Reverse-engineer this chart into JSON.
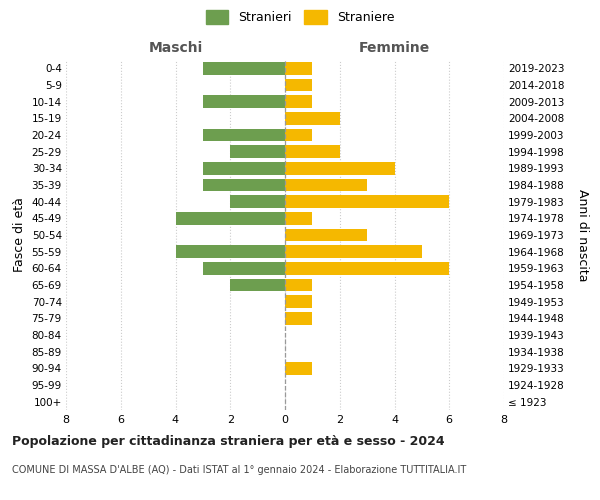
{
  "age_groups": [
    "100+",
    "95-99",
    "90-94",
    "85-89",
    "80-84",
    "75-79",
    "70-74",
    "65-69",
    "60-64",
    "55-59",
    "50-54",
    "45-49",
    "40-44",
    "35-39",
    "30-34",
    "25-29",
    "20-24",
    "15-19",
    "10-14",
    "5-9",
    "0-4"
  ],
  "birth_years": [
    "≤ 1923",
    "1924-1928",
    "1929-1933",
    "1934-1938",
    "1939-1943",
    "1944-1948",
    "1949-1953",
    "1954-1958",
    "1959-1963",
    "1964-1968",
    "1969-1973",
    "1974-1978",
    "1979-1983",
    "1984-1988",
    "1989-1993",
    "1994-1998",
    "1999-2003",
    "2004-2008",
    "2009-2013",
    "2014-2018",
    "2019-2023"
  ],
  "males": [
    0,
    0,
    0,
    0,
    0,
    0,
    0,
    2,
    3,
    4,
    0,
    4,
    2,
    3,
    3,
    2,
    3,
    0,
    3,
    0,
    3
  ],
  "females": [
    0,
    0,
    1,
    0,
    0,
    1,
    1,
    1,
    6,
    5,
    3,
    1,
    6,
    3,
    4,
    2,
    1,
    2,
    1,
    1,
    1
  ],
  "male_color": "#6d9e4f",
  "female_color": "#f5b800",
  "background_color": "#ffffff",
  "grid_color": "#cccccc",
  "center_line_color": "#999999",
  "title": "Popolazione per cittadinanza straniera per età e sesso - 2024",
  "subtitle": "COMUNE DI MASSA D'ALBE (AQ) - Dati ISTAT al 1° gennaio 2024 - Elaborazione TUTTITALIA.IT",
  "left_header": "Maschi",
  "right_header": "Femmine",
  "left_yaxis_label": "Fasce di età",
  "right_yaxis_label": "Anni di nascita",
  "legend_male": "Stranieri",
  "legend_female": "Straniere",
  "xlim": 8
}
